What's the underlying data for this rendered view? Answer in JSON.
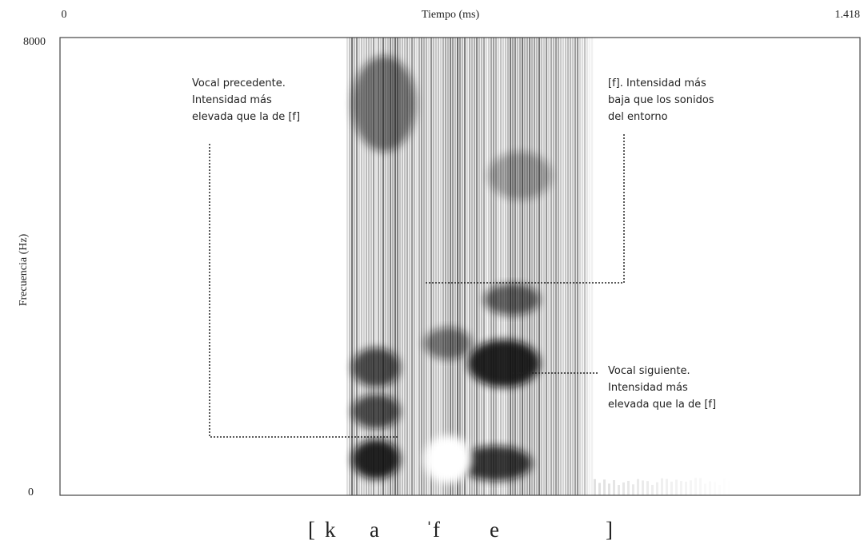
{
  "axes": {
    "x_title": "Tiempo (ms)",
    "x_start": "0",
    "x_end": "1.418",
    "y_title": "Frecuencia (Hz)",
    "y_top": "8000",
    "y_bottom": "0"
  },
  "annotations": [
    {
      "lines": [
        "Vocal precedente.",
        "Intensidad más",
        "elevada que la de [f]"
      ]
    },
    {
      "lines": [
        "[f]. Intensidad más",
        "baja que los sonidos",
        "del entorno"
      ]
    },
    {
      "lines": [
        "Vocal siguiente.",
        "Intensidad más",
        "elevada que la de [f]"
      ]
    }
  ],
  "transcription": [
    "[",
    "k",
    "a",
    "ˈf",
    "e",
    "]"
  ]
}
